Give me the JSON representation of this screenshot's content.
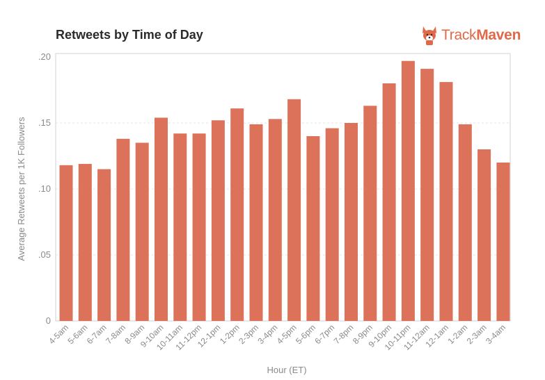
{
  "header": {
    "title": "Retweets by Time of Day",
    "brand_part1": "Track",
    "brand_part2": "Maven",
    "logo_icon": "corgi-icon",
    "brand_color": "#e0694a"
  },
  "chart_data": {
    "type": "bar",
    "title": "Retweets by Time of Day",
    "xlabel": "Hour (ET)",
    "ylabel": "Average Retweets per 1K Followers",
    "ylim": [
      0,
      0.2
    ],
    "yticks": [
      {
        "value": 0,
        "label": "0"
      },
      {
        "value": 0.05,
        "label": ".05"
      },
      {
        "value": 0.1,
        "label": ".10"
      },
      {
        "value": 0.15,
        "label": ".15"
      },
      {
        "value": 0.2,
        "label": ".20"
      }
    ],
    "grid": "horizontal",
    "bar_color": "#db7259",
    "categories": [
      "4-5am",
      "5-6am",
      "6-7am",
      "7-8am",
      "8-9am",
      "9-10am",
      "10-11am",
      "11-12pm",
      "12-1pm",
      "1-2pm",
      "2-3pm",
      "3-4pm",
      "4-5pm",
      "5-6pm",
      "6-7pm",
      "7-8pm",
      "8-9pm",
      "9-10pm",
      "10-11pm",
      "11-12am",
      "12-1am",
      "1-2am",
      "2-3am",
      "3-4am"
    ],
    "values": [
      0.118,
      0.119,
      0.115,
      0.138,
      0.135,
      0.154,
      0.142,
      0.142,
      0.152,
      0.161,
      0.149,
      0.153,
      0.168,
      0.14,
      0.146,
      0.15,
      0.163,
      0.18,
      0.197,
      0.191,
      0.181,
      0.149,
      0.13,
      0.12
    ]
  }
}
